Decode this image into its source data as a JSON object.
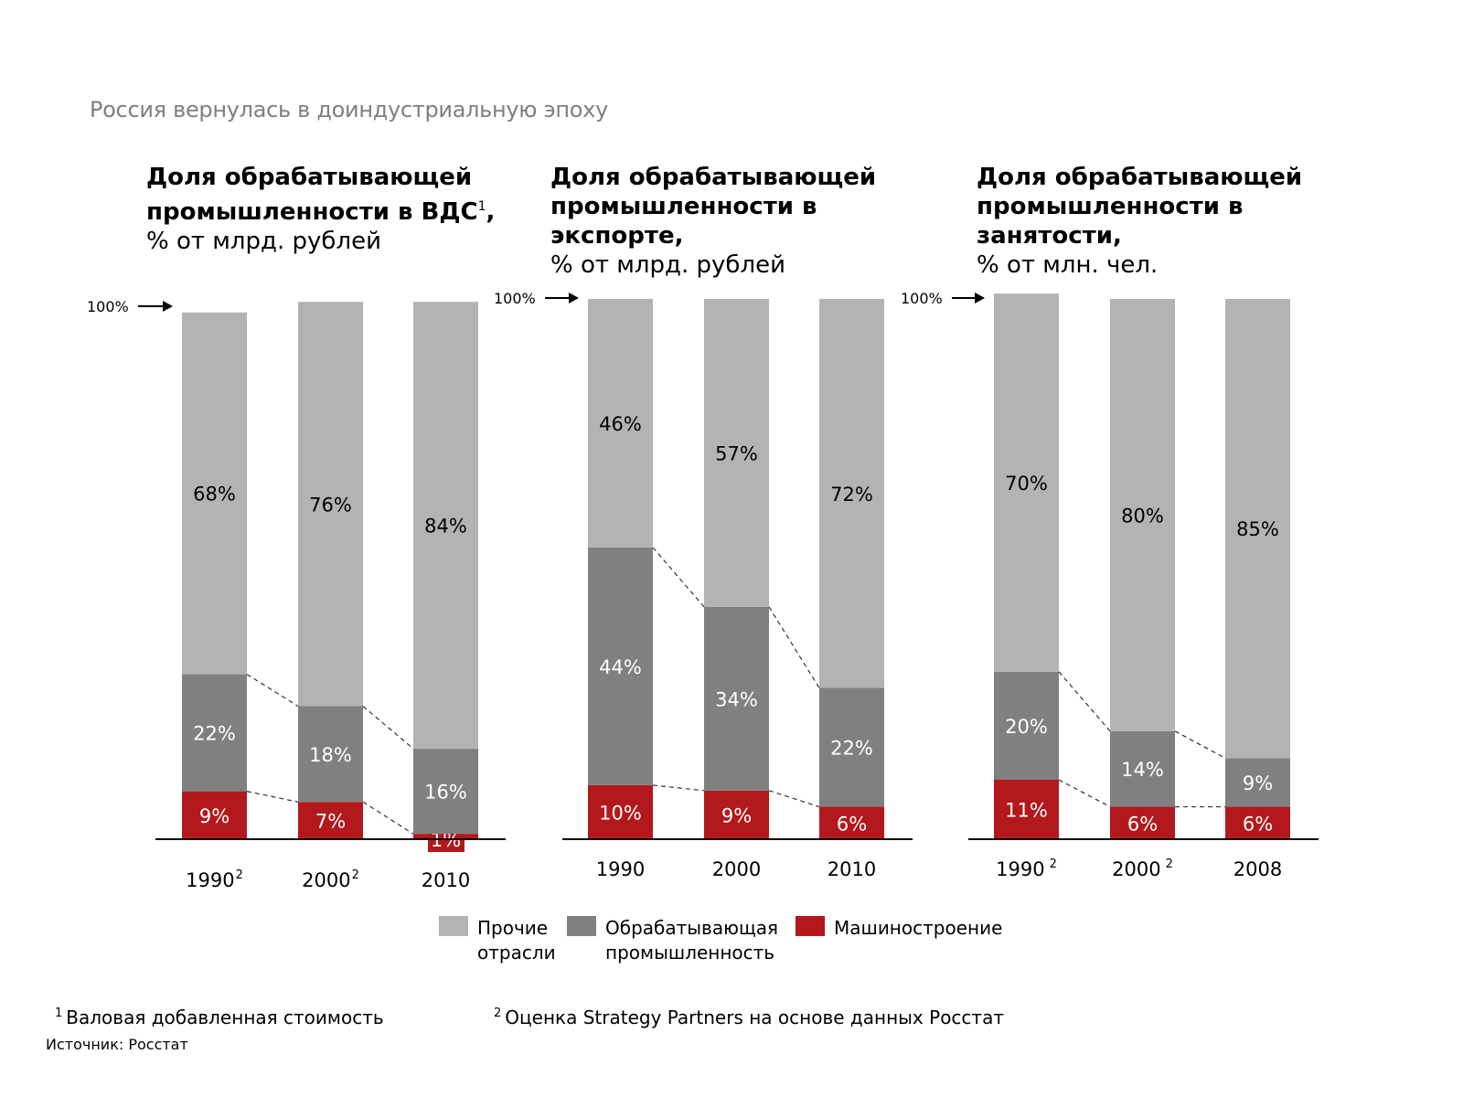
{
  "page": {
    "title": "Россия вернулась в доиндустриальную эпоху"
  },
  "colors": {
    "other": "#b3b3b3",
    "manufacturing": "#808080",
    "machinery": "#b3181c",
    "axis": "#000000"
  },
  "chart_data": [
    {
      "type": "bar",
      "stacked": true,
      "title": "Доля обрабатывающей\nпромышленности в ВДС",
      "title_sup": "1",
      "title_suffix": ",",
      "subtitle": "% от млрд. рублей",
      "top_label": "100%",
      "categories": [
        "1990",
        "2000",
        "2010"
      ],
      "category_sups": [
        "2",
        "2",
        ""
      ],
      "ylim": [
        0,
        100
      ],
      "series": [
        {
          "key": "machinery",
          "values": [
            9,
            7,
            1
          ]
        },
        {
          "key": "manufacturing",
          "values": [
            22,
            18,
            16
          ]
        },
        {
          "key": "other",
          "values": [
            68,
            76,
            84
          ]
        }
      ]
    },
    {
      "type": "bar",
      "stacked": true,
      "title": "Доля обрабатывающей\nпромышленности в\nэкспорте,",
      "title_sup": "",
      "title_suffix": "",
      "subtitle": "% от млрд. рублей",
      "top_label": "100%",
      "categories": [
        "1990",
        "2000",
        "2010"
      ],
      "category_sups": [
        "",
        "",
        ""
      ],
      "ylim": [
        0,
        100
      ],
      "series": [
        {
          "key": "machinery",
          "values": [
            10,
            9,
            6
          ]
        },
        {
          "key": "manufacturing",
          "values": [
            44,
            34,
            22
          ]
        },
        {
          "key": "other",
          "values": [
            46,
            57,
            72
          ]
        }
      ]
    },
    {
      "type": "bar",
      "stacked": true,
      "title": "Доля обрабатывающей\nпромышленности в\nзанятости,",
      "title_sup": "",
      "title_suffix": "",
      "subtitle": "% от млн. чел.",
      "top_label": "100%",
      "categories": [
        "1990",
        "2000",
        "2008"
      ],
      "category_sups": [
        "2",
        "2",
        ""
      ],
      "ylim": [
        0,
        100
      ],
      "series": [
        {
          "key": "machinery",
          "values": [
            11,
            6,
            6
          ]
        },
        {
          "key": "manufacturing",
          "values": [
            20,
            14,
            9
          ]
        },
        {
          "key": "other",
          "values": [
            70,
            80,
            85
          ]
        }
      ]
    }
  ],
  "legend": {
    "items": [
      {
        "key": "other",
        "label": "Прочие\nотрасли"
      },
      {
        "key": "manufacturing",
        "label": "Обрабатывающая\nпромышленность"
      },
      {
        "key": "machinery",
        "label": "Машиностроение"
      }
    ]
  },
  "footnotes": [
    {
      "mark": "1",
      "text": "Валовая добавленная стоимость"
    },
    {
      "mark": "2",
      "text": "Оценка Strategy Partners на основе данных Росстат"
    }
  ],
  "source": "Источник: Росстат"
}
